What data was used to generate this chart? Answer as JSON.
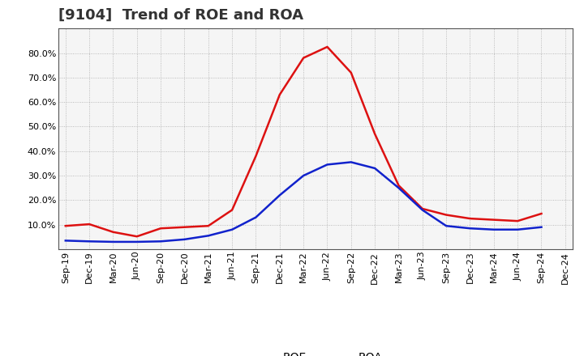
{
  "title": "[9104]  Trend of ROE and ROA",
  "x_labels": [
    "Sep-19",
    "Dec-19",
    "Mar-20",
    "Jun-20",
    "Sep-20",
    "Dec-20",
    "Mar-21",
    "Jun-21",
    "Sep-21",
    "Dec-21",
    "Mar-22",
    "Jun-22",
    "Sep-22",
    "Dec-22",
    "Mar-23",
    "Jun-23",
    "Sep-23",
    "Dec-23",
    "Mar-24",
    "Jun-24",
    "Sep-24",
    "Dec-24"
  ],
  "roe": [
    9.5,
    10.2,
    7.0,
    5.2,
    8.5,
    9.0,
    9.5,
    16.0,
    38.0,
    63.0,
    78.0,
    82.5,
    72.0,
    47.0,
    26.0,
    16.5,
    14.0,
    12.5,
    12.0,
    11.5,
    14.5,
    null
  ],
  "roa": [
    3.5,
    3.2,
    3.0,
    3.0,
    3.2,
    4.0,
    5.5,
    8.0,
    13.0,
    22.0,
    30.0,
    34.5,
    35.5,
    33.0,
    25.0,
    16.0,
    9.5,
    8.5,
    8.0,
    8.0,
    9.0,
    null
  ],
  "roe_color": "#dd1111",
  "roa_color": "#1122cc",
  "ylim": [
    0,
    90
  ],
  "yticks": [
    10,
    20,
    30,
    40,
    50,
    60,
    70,
    80
  ],
  "background_color": "#ffffff",
  "plot_bg_color": "#f5f5f5",
  "grid_color": "#999999",
  "title_fontsize": 13,
  "legend_fontsize": 10,
  "tick_fontsize": 8,
  "linewidth": 1.8
}
